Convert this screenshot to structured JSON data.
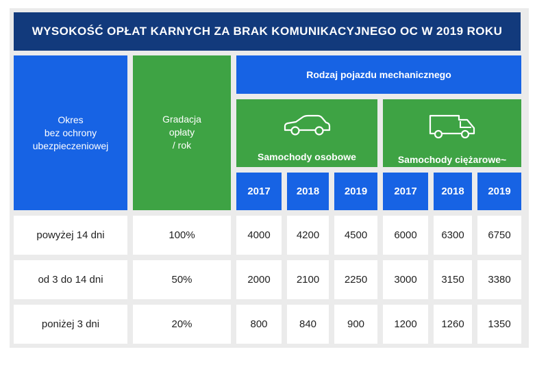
{
  "title": "WYSOKOŚĆ OPŁAT KARNYCH ZA BRAK KOMUNIKACYJNEGO OC W 2019 ROKU",
  "headers": {
    "period": "Okres\nbez ochrony\nubezpieczeniowej",
    "gradation": "Gradacja\nopłaty\n/ rok",
    "vehicle_type": "Rodzaj pojazdu mechanicznego",
    "cars": "Samochody osobowe",
    "trucks": "Samochody ciężarowe~",
    "car_icon": "car-icon",
    "truck_icon": "truck-icon"
  },
  "years": [
    "2017",
    "2018",
    "2019",
    "2017",
    "2018",
    "2019"
  ],
  "rows": [
    {
      "period": "powyżej 14 dni",
      "gradation": "100%",
      "values": [
        "4000",
        "4200",
        "4500",
        "6000",
        "6300",
        "6750"
      ]
    },
    {
      "period": "od 3 do 14 dni",
      "gradation": "50%",
      "values": [
        "2000",
        "2100",
        "2250",
        "3000",
        "3150",
        "3380"
      ]
    },
    {
      "period": "poniżej 3 dni",
      "gradation": "20%",
      "values": [
        "800",
        "840",
        "900",
        "1200",
        "1260",
        "1350"
      ]
    }
  ],
  "colors": {
    "title_bg": "#123a7c",
    "blue": "#1763e4",
    "green": "#3ea344",
    "frame": "#ebebeb"
  }
}
